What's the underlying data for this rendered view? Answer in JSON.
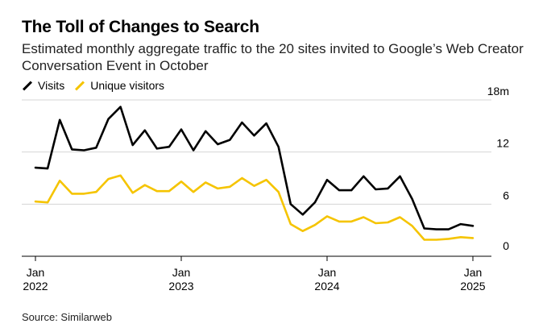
{
  "header": {
    "title": "The Toll of Changes to Search",
    "subtitle": "Estimated monthly aggregate traffic to the 20 sites invited to Google’s Web Creator Conversation Event in October"
  },
  "footer": {
    "source": "Source: Similarweb"
  },
  "chart_data": {
    "type": "line",
    "title": "The Toll of Changes to Search",
    "subtitle": "Estimated monthly aggregate traffic to the 20 sites invited to Google’s Web Creator Conversation Event in October",
    "x": [
      "2022-01",
      "2022-02",
      "2022-03",
      "2022-04",
      "2022-05",
      "2022-06",
      "2022-07",
      "2022-08",
      "2022-09",
      "2022-10",
      "2022-11",
      "2022-12",
      "2023-01",
      "2023-02",
      "2023-03",
      "2023-04",
      "2023-05",
      "2023-06",
      "2023-07",
      "2023-08",
      "2023-09",
      "2023-10",
      "2023-11",
      "2023-12",
      "2024-01",
      "2024-02",
      "2024-03",
      "2024-04",
      "2024-05",
      "2024-06",
      "2024-07",
      "2024-08",
      "2024-09",
      "2024-10",
      "2024-11",
      "2024-12",
      "2025-01"
    ],
    "x_tick_labels": [
      {
        "x": "2022-01",
        "line1": "Jan",
        "line2": "2022"
      },
      {
        "x": "2023-01",
        "line1": "Jan",
        "line2": "2023"
      },
      {
        "x": "2024-01",
        "line1": "Jan",
        "line2": "2024"
      },
      {
        "x": "2025-01",
        "line1": "Jan",
        "line2": "2025"
      }
    ],
    "y_ticks": [
      0,
      6,
      12,
      18
    ],
    "y_tick_labels": [
      "0",
      "6",
      "12",
      "18m"
    ],
    "ylim": [
      0,
      18
    ],
    "grid": true,
    "legend_position": "top-left",
    "series": [
      {
        "name": "Visits",
        "color": "#000000",
        "values": [
          10.2,
          10.1,
          15.7,
          12.3,
          12.2,
          12.5,
          15.8,
          17.2,
          12.8,
          14.5,
          12.4,
          12.6,
          14.6,
          12.2,
          14.4,
          12.9,
          13.4,
          15.4,
          13.9,
          15.3,
          12.6,
          6.0,
          4.8,
          6.2,
          8.8,
          7.6,
          7.6,
          9.2,
          7.7,
          7.8,
          9.2,
          6.6,
          3.2,
          3.1,
          3.1,
          3.7,
          3.5
        ]
      },
      {
        "name": "Unique visitors",
        "color": "#f5c400",
        "values": [
          6.3,
          6.2,
          8.7,
          7.2,
          7.2,
          7.4,
          8.9,
          9.3,
          7.3,
          8.2,
          7.5,
          7.5,
          8.6,
          7.4,
          8.5,
          7.8,
          8.0,
          9.0,
          8.1,
          8.8,
          7.4,
          3.7,
          2.9,
          3.6,
          4.6,
          4.0,
          4.0,
          4.5,
          3.8,
          3.9,
          4.5,
          3.5,
          1.9,
          1.9,
          2.0,
          2.2,
          2.1
        ]
      }
    ]
  }
}
